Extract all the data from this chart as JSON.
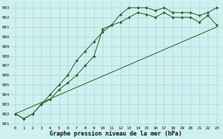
{
  "line1_x": [
    0,
    1,
    2,
    3,
    4,
    5,
    6,
    7,
    8,
    9,
    10,
    11,
    12,
    13,
    14,
    15,
    16,
    17,
    18,
    19,
    20,
    21,
    22,
    23
  ],
  "line1_y": [
    982,
    981.5,
    982,
    983,
    984,
    985,
    986,
    987.5,
    988.5,
    989.5,
    990.5,
    991.2,
    992.3,
    993.0,
    993.0,
    993.0,
    992.7,
    993.0,
    992.5,
    992.5,
    992.5,
    992.2,
    992.5,
    993.0
  ],
  "line2_x": [
    0,
    1,
    2,
    3,
    4,
    5,
    6,
    7,
    8,
    9,
    10,
    11,
    12,
    13,
    14,
    15,
    16,
    17,
    18,
    19,
    20,
    21,
    22,
    23
  ],
  "line2_y": [
    982,
    981.5,
    982,
    983,
    983.5,
    984.5,
    985.2,
    986.0,
    987.0,
    988.0,
    990.8,
    991.2,
    991.5,
    992.0,
    992.5,
    992.3,
    992.0,
    992.5,
    992.0,
    992.0,
    992.0,
    991.5,
    992.2,
    991.2
  ],
  "line3_x": [
    0,
    23
  ],
  "line3_y": [
    982,
    991.0
  ],
  "x": [
    0,
    1,
    2,
    3,
    4,
    5,
    6,
    7,
    8,
    9,
    10,
    11,
    12,
    13,
    14,
    15,
    16,
    17,
    18,
    19,
    20,
    21,
    22,
    23
  ],
  "ylim": [
    980.8,
    993.6
  ],
  "yticks": [
    981,
    982,
    983,
    984,
    985,
    986,
    987,
    988,
    989,
    990,
    991,
    992,
    993
  ],
  "xticks": [
    0,
    1,
    2,
    3,
    4,
    5,
    6,
    7,
    8,
    9,
    10,
    11,
    12,
    13,
    14,
    15,
    16,
    17,
    18,
    19,
    20,
    21,
    22,
    23
  ],
  "xlabel": "Graphe pression niveau de la mer (hPa)",
  "line_color": "#2d6a2d",
  "marker": "D",
  "bg_color": "#cef0f0",
  "grid_color": "#a0d8d8",
  "marker_size": 2.0,
  "linewidth": 0.8
}
